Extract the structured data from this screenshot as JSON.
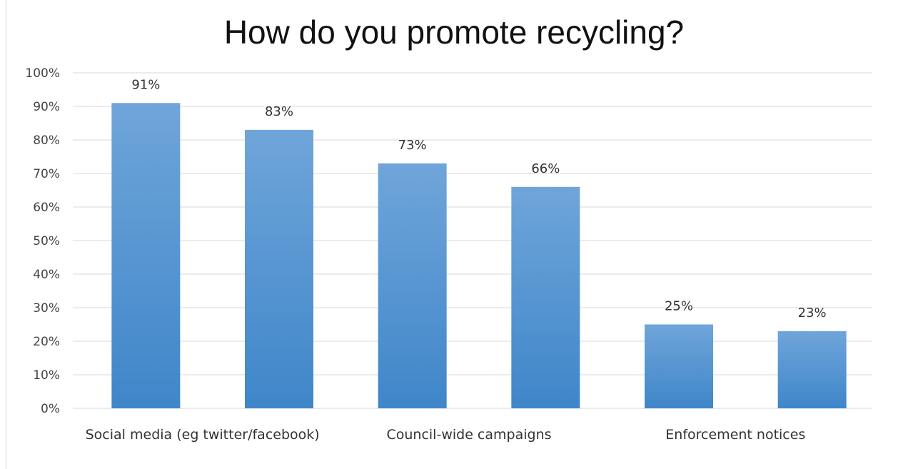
{
  "chart_data": {
    "type": "bar",
    "title": "How do you promote recycling?",
    "categories": [
      "Social media (eg twitter/facebook)",
      "",
      "Council-wide campaigns",
      "",
      "Enforcement notices",
      ""
    ],
    "values": [
      91,
      83,
      73,
      66,
      25,
      23
    ],
    "data_labels": [
      "91%",
      "83%",
      "73%",
      "66%",
      "25%",
      "23%"
    ],
    "ylim": [
      0,
      100
    ],
    "yticks": [
      0,
      10,
      20,
      30,
      40,
      50,
      60,
      70,
      80,
      90,
      100
    ],
    "ytick_labels": [
      "0%",
      "10%",
      "20%",
      "30%",
      "40%",
      "50%",
      "60%",
      "70%",
      "80%",
      "90%",
      "100%"
    ],
    "grid": true,
    "legend": "none",
    "colors": {
      "bar_top": "#6fa5da",
      "bar_bottom": "#3f86c9",
      "grid": "#d9d9d9"
    }
  }
}
